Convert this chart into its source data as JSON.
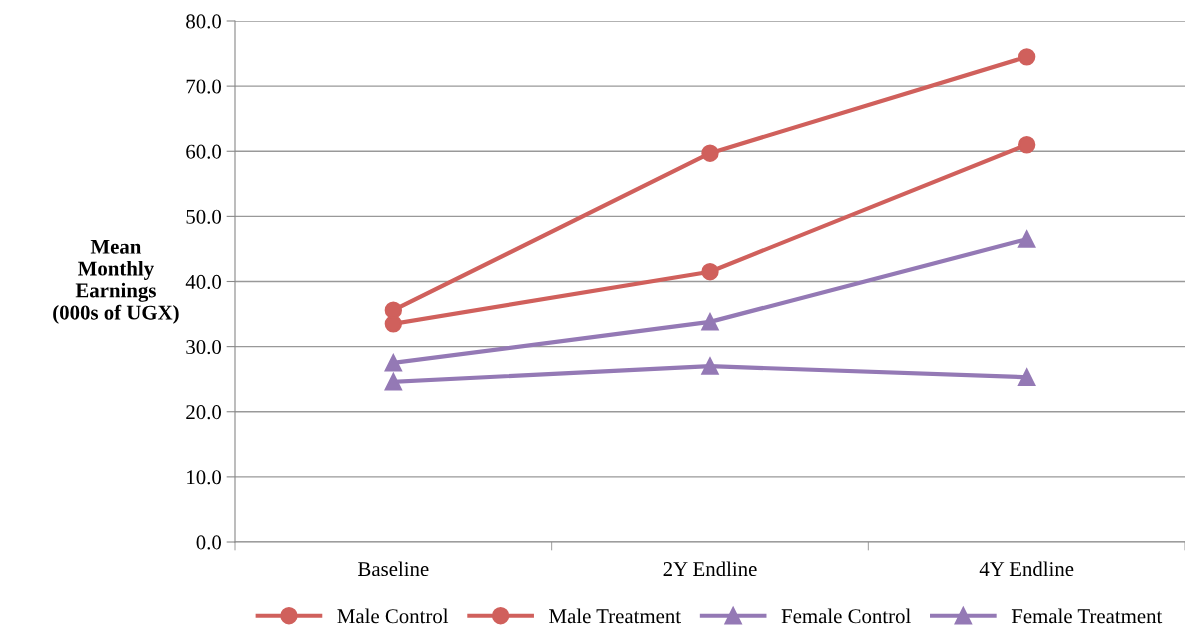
{
  "chart_data": {
    "type": "line",
    "ylabel": "Mean\nMonthly\nEarnings\n(000s of UGX)",
    "categories": [
      "Baseline",
      "2Y Endline",
      "4Y Endline"
    ],
    "series": [
      {
        "name": "Male Control",
        "color": "#d0605c",
        "marker": "circle",
        "values": [
          33.5,
          41.5,
          61.0
        ]
      },
      {
        "name": "Male Treatment",
        "color": "#d0605c",
        "marker": "circle",
        "values": [
          35.6,
          59.7,
          74.5
        ]
      },
      {
        "name": "Female Control",
        "color": "#9479b5",
        "marker": "triangle",
        "values": [
          24.6,
          27.0,
          25.3
        ]
      },
      {
        "name": "Female Treatment",
        "color": "#9479b5",
        "marker": "triangle",
        "values": [
          27.5,
          33.8,
          46.5
        ]
      }
    ],
    "ylim": [
      0,
      80
    ],
    "yticks": [
      {
        "value": 0,
        "label": "0.0"
      },
      {
        "value": 10,
        "label": "10.0"
      },
      {
        "value": 20,
        "label": "20.0"
      },
      {
        "value": 30,
        "label": "30.0"
      },
      {
        "value": 40,
        "label": "40.0"
      },
      {
        "value": 50,
        "label": "50.0"
      },
      {
        "value": 60,
        "label": "60.0"
      },
      {
        "value": 70,
        "label": "70.0"
      },
      {
        "value": 80,
        "label": "80.0"
      }
    ],
    "grid": "y",
    "legend": "bottom",
    "line_style": "solid"
  }
}
